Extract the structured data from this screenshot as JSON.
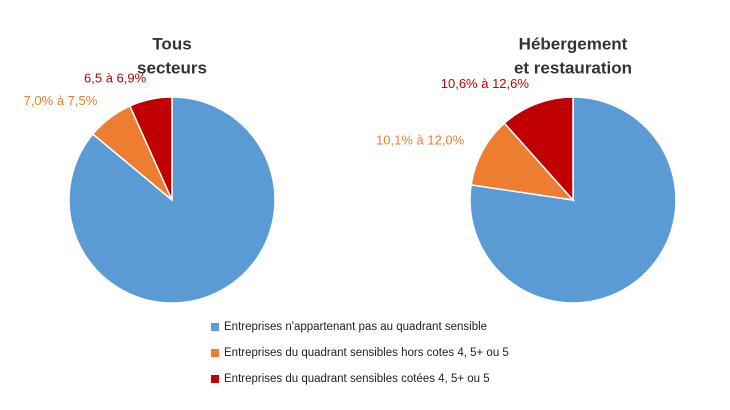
{
  "chart_data": [
    {
      "type": "pie",
      "title": [
        "Tous",
        "secteurs"
      ],
      "categories": [
        "Entreprises n'appartenant pas au quadrant sensible",
        "Entreprises du quadrant sensibles hors cotes 4, 5+ ou 5",
        "Entreprises du quadrant sensibles cotées 4, 5+ ou 5"
      ],
      "colors": [
        "#5b9bd5",
        "#ed7d31",
        "#c00000"
      ],
      "values": [
        86.05,
        7.25,
        6.7
      ],
      "value_labels": [
        null,
        "7,0% à 7,5%",
        "6,5 à 6,9%"
      ]
    },
    {
      "type": "pie",
      "title": [
        "Hébergement",
        "et restauration"
      ],
      "categories": [
        "Entreprises n'appartenant pas au quadrant sensible",
        "Entreprises du quadrant sensibles hors cotes 4, 5+ ou 5",
        "Entreprises du quadrant sensibles cotées 4, 5+ ou 5"
      ],
      "colors": [
        "#5b9bd5",
        "#ed7d31",
        "#c00000"
      ],
      "values": [
        77.35,
        11.05,
        11.6
      ],
      "value_labels": [
        null,
        "10,1% à 12,0%",
        "10,6% à 12,6%"
      ]
    }
  ]
}
